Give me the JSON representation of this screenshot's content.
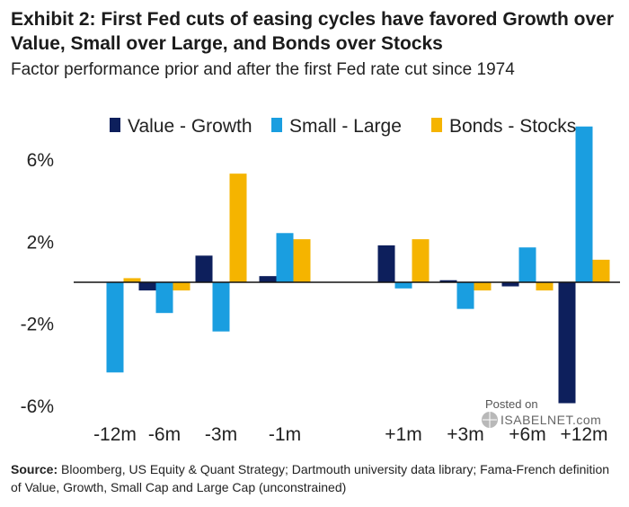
{
  "header": {
    "title": "Exhibit 2: First Fed cuts of easing cycles have favored Growth over Value, Small over Large, and Bonds over Stocks",
    "subtitle": "Factor performance prior and after the first Fed rate cut since 1974"
  },
  "footer": {
    "source_label": "Source:",
    "source_text": " Bloomberg, US Equity & Quant Strategy; Dartmouth university data library; Fama-French definition of Value, Growth, Small Cap and Large Cap (unconstrained)"
  },
  "watermark": {
    "line1": "Posted on",
    "line2": "ISABELNET.com"
  },
  "chart_data": {
    "type": "bar",
    "categories": [
      "-12m",
      "-6m",
      "-3m",
      "-1m",
      "+1m",
      "+3m",
      "+6m",
      "+12m"
    ],
    "series": [
      {
        "name": "Value - Growth",
        "color": "#0d1f5c",
        "values": [
          0.0,
          -0.4,
          1.3,
          0.3,
          1.8,
          0.1,
          -0.2,
          -5.9
        ]
      },
      {
        "name": "Small - Large",
        "color": "#1a9ee0",
        "values": [
          -4.4,
          -1.5,
          -2.4,
          2.4,
          -0.3,
          -1.3,
          1.7,
          7.6
        ]
      },
      {
        "name": "Bonds - Stocks",
        "color": "#f5b400",
        "values": [
          0.2,
          -0.4,
          5.3,
          2.1,
          2.1,
          -0.4,
          -0.4,
          1.1
        ]
      }
    ],
    "yticks": [
      6,
      2,
      -2,
      -6
    ],
    "ytick_labels": [
      "6%",
      "2%",
      "-2%",
      "-6%"
    ],
    "ylim": [
      -6.6,
      7.8
    ],
    "legend_position": "top",
    "grid": false
  }
}
